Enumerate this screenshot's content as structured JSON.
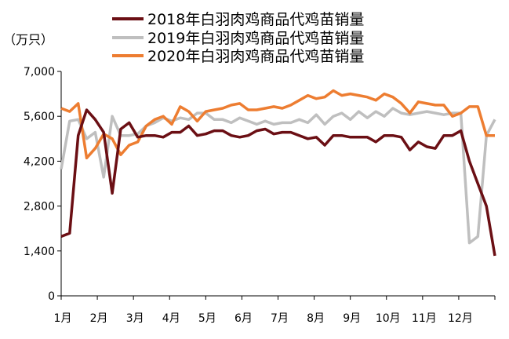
{
  "chart_data": {
    "type": "line",
    "unit_label": "（万只）",
    "y_range": [
      0,
      7000
    ],
    "y_ticks": [
      "0",
      "1,400",
      "2,800",
      "4,200",
      "5,600",
      "7,000"
    ],
    "y_tick_values": [
      0,
      1400,
      2800,
      4200,
      5600,
      7000
    ],
    "x_labels": [
      "1月",
      "2月",
      "3月",
      "4月",
      "5月",
      "6月",
      "7月",
      "8月",
      "9月",
      "10月",
      "11月",
      "12月"
    ],
    "points_per_series": 52,
    "grid": false,
    "legend_position": "top",
    "series": [
      {
        "name": "2018年白羽肉鸡商品代鸡苗销量",
        "color": "#6B0F14",
        "values": [
          1850,
          1950,
          5000,
          5800,
          5500,
          5100,
          3200,
          5200,
          5400,
          4950,
          5000,
          5000,
          4950,
          5100,
          5100,
          5300,
          5000,
          5050,
          5150,
          5150,
          5000,
          4950,
          5000,
          5150,
          5200,
          5050,
          5100,
          5100,
          5000,
          4900,
          4950,
          4700,
          5000,
          5000,
          4950,
          4950,
          4950,
          4800,
          5000,
          5000,
          4950,
          4550,
          4800,
          4650,
          4600,
          5000,
          5000,
          5150,
          4200,
          3500,
          2800,
          1250
        ]
      },
      {
        "name": "2019年白羽肉鸡商品代鸡苗销量",
        "color": "#BFBFBF",
        "values": [
          3950,
          5450,
          5500,
          4900,
          5100,
          3700,
          5600,
          5000,
          5000,
          5050,
          5300,
          5400,
          5550,
          5450,
          5550,
          5500,
          5700,
          5700,
          5500,
          5500,
          5400,
          5550,
          5450,
          5350,
          5450,
          5350,
          5400,
          5400,
          5500,
          5400,
          5650,
          5350,
          5600,
          5700,
          5500,
          5750,
          5550,
          5750,
          5600,
          5850,
          5700,
          5650,
          5700,
          5750,
          5700,
          5650,
          5700,
          5700,
          1650,
          1850,
          5000,
          5500
        ]
      },
      {
        "name": "2020年白羽肉鸡商品代鸡苗销量",
        "color": "#ED7D31",
        "values": [
          5850,
          5750,
          6000,
          4300,
          4600,
          5050,
          4900,
          4400,
          4700,
          4800,
          5300,
          5500,
          5600,
          5350,
          5900,
          5750,
          5450,
          5750,
          5800,
          5850,
          5950,
          6000,
          5800,
          5800,
          5850,
          5900,
          5850,
          5950,
          6100,
          6250,
          6150,
          6200,
          6400,
          6250,
          6300,
          6250,
          6200,
          6100,
          6300,
          6200,
          6000,
          5700,
          6050,
          6000,
          5950,
          5950,
          5600,
          5700,
          5900,
          5900,
          5000,
          5000
        ]
      }
    ]
  }
}
